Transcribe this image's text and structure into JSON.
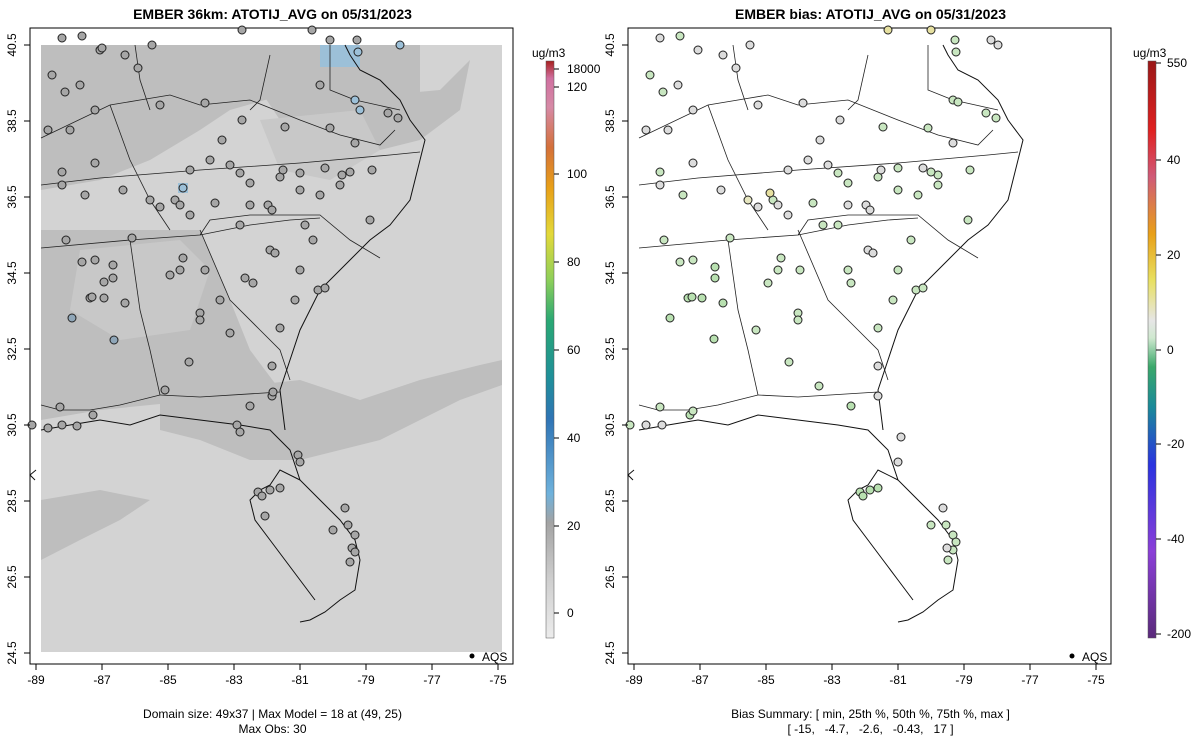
{
  "left": {
    "title": "EMBER 36km: ATOTIJ_AVG on 05/31/2023",
    "caption_line1": "Domain size: 49x37 | Max Model = 18 at (49, 25)",
    "caption_line2": "Max Obs: 30",
    "legend_unit": "ug/m3",
    "legend_labels": [
      "18000",
      "120",
      "100",
      "80",
      "60",
      "40",
      "20",
      "0"
    ],
    "legend_marker_label": "AQS"
  },
  "right": {
    "title": "EMBER bias: ATOTIJ_AVG on 05/31/2023",
    "caption_line1": "Bias Summary: [ min, 25th %, 50th %, 75th %, max ]",
    "caption_line2": "[ -15,   -4.7,   -2.6,   -0.43,   17 ]",
    "legend_unit": "ug/m3",
    "legend_labels": [
      "550",
      "40",
      "20",
      "0",
      "-20",
      "-40",
      "-200"
    ],
    "legend_marker_label": "AQS"
  },
  "axes": {
    "x_ticks": [
      "-89",
      "-87",
      "-85",
      "-83",
      "-81",
      "-79",
      "-77",
      "-75"
    ],
    "y_ticks": [
      "40.5",
      "38.5",
      "36.5",
      "34.5",
      "32.5",
      "30.5",
      "28.5",
      "26.5",
      "24.5"
    ]
  },
  "colors": {
    "model_base": "#d3d3d3",
    "model_dark": "#bdbdbd",
    "model_blue": "#9cc0d8",
    "bias_near_zero": "#d8d8d8",
    "bias_negative": "#b8e0b0"
  }
}
